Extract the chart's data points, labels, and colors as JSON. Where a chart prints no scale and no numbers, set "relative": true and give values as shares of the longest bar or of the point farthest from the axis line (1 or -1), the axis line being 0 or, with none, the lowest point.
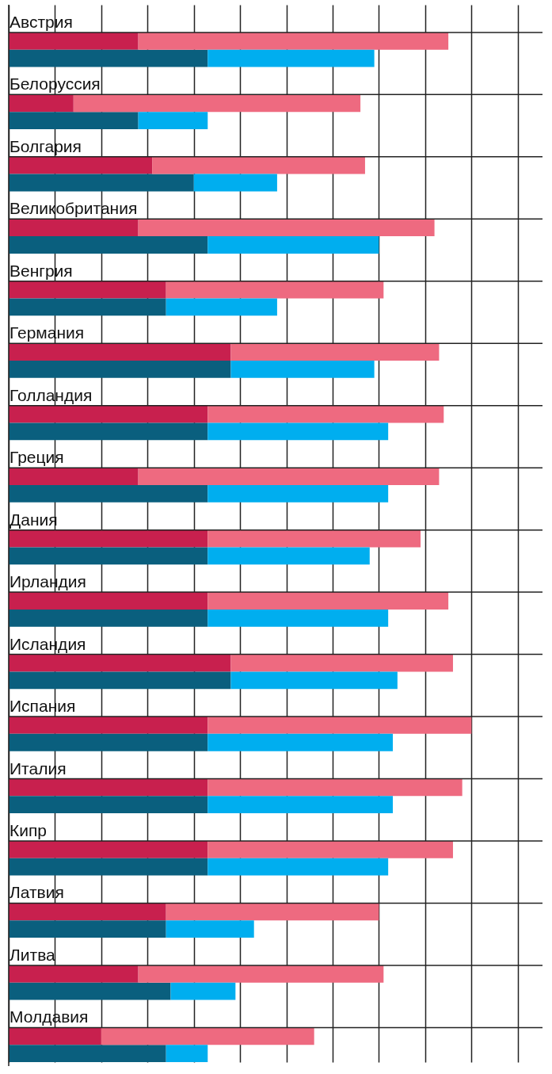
{
  "chart_data": {
    "type": "bar",
    "orientation": "horizontal",
    "stacked": true,
    "relative": true,
    "grid": true,
    "categories": [
      "Австрия",
      null,
      "Белоруссия",
      null,
      "Болгария",
      null,
      "Великобритания",
      null,
      "Венгрия",
      null,
      "Германия",
      null,
      "Голландия",
      null,
      "Греция",
      null,
      "Дания",
      null,
      "Ирландия",
      null,
      "Исландия",
      null,
      "Испания",
      null,
      "Италия",
      null,
      "Кипр",
      null,
      "Латвия",
      null,
      "Литва",
      null,
      "Молдавия",
      null
    ],
    "series": [
      {
        "colors": [
          "#c8204e",
          "#0a5f7e",
          "#c8204e",
          "#0a5f7e",
          "#c8204e",
          "#0a5f7e",
          "#c8204e",
          "#0a5f7e",
          "#c8204e",
          "#0a5f7e",
          "#c8204e",
          "#0a5f7e",
          "#c8204e",
          "#0a5f7e",
          "#c8204e",
          "#0a5f7e",
          "#c8204e",
          "#0a5f7e",
          "#c8204e",
          "#0a5f7e",
          "#c8204e",
          "#0a5f7e",
          "#c8204e",
          "#0a5f7e",
          "#c8204e",
          "#0a5f7e",
          "#c8204e",
          "#0a5f7e",
          "#c8204e",
          "#0a5f7e",
          "#c8204e",
          "#0a5f7e",
          "#c8204e",
          "#0a5f7e"
        ],
        "values": [
          0.28,
          0.43,
          0.14,
          0.28,
          0.31,
          0.4,
          0.28,
          0.43,
          0.34,
          0.34,
          0.48,
          0.48,
          0.43,
          0.43,
          0.28,
          0.43,
          0.43,
          0.43,
          0.43,
          0.43,
          0.48,
          0.48,
          0.43,
          0.43,
          0.43,
          0.43,
          0.43,
          0.43,
          0.34,
          0.34,
          0.28,
          0.35,
          0.2,
          0.34
        ]
      },
      {
        "colors": [
          "#ee6a80",
          "#00aeef",
          "#ee6a80",
          "#00aeef",
          "#ee6a80",
          "#00aeef",
          "#ee6a80",
          "#00aeef",
          "#ee6a80",
          "#00aeef",
          "#ee6a80",
          "#00aeef",
          "#ee6a80",
          "#00aeef",
          "#ee6a80",
          "#00aeef",
          "#ee6a80",
          "#00aeef",
          "#ee6a80",
          "#00aeef",
          "#ee6a80",
          "#00aeef",
          "#ee6a80",
          "#00aeef",
          "#ee6a80",
          "#00aeef",
          "#ee6a80",
          "#00aeef",
          "#ee6a80",
          "#00aeef",
          "#ee6a80",
          "#00aeef",
          "#ee6a80",
          "#00aeef"
        ],
        "values": [
          0.67,
          0.36,
          0.62,
          0.15,
          0.46,
          0.18,
          0.64,
          0.37,
          0.47,
          0.24,
          0.45,
          0.31,
          0.51,
          0.39,
          0.65,
          0.39,
          0.46,
          0.35,
          0.52,
          0.39,
          0.48,
          0.36,
          0.57,
          0.4,
          0.55,
          0.4,
          0.53,
          0.39,
          0.46,
          0.19,
          0.53,
          0.14,
          0.46,
          0.09
        ]
      }
    ]
  }
}
